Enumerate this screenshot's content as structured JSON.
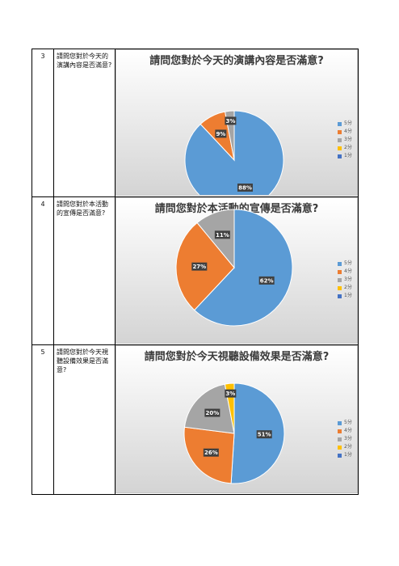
{
  "colors": {
    "5分": "#5b9bd5",
    "4分": "#ed7d31",
    "3分": "#a5a5a5",
    "2分": "#ffc000",
    "1分": "#4472c4"
  },
  "rows": [
    {
      "num": "3",
      "question": "請問您對於今天的演講內容是否滿意?",
      "chart_title": "請問您對於今天的演講內容是否滿意?"
    },
    {
      "num": "4",
      "question": "請問您對於本活動的宣傳是否滿意?",
      "chart_title": "請問您對於本活動的宣傳是否滿意?"
    },
    {
      "num": "5",
      "question": "請問您對於今天視聽設備效果是否滿意?",
      "chart_title": "請問您對於今天視聽設備效果是否滿意?"
    }
  ],
  "chart_data": [
    {
      "type": "pie",
      "title": "請問您對於今天的演講內容是否滿意?",
      "categories": [
        "5分",
        "4分",
        "3分",
        "2分",
        "1分"
      ],
      "values": [
        88,
        9,
        3,
        0,
        0
      ],
      "labels": [
        "88%",
        "9%",
        "3%"
      ],
      "legend": "right"
    },
    {
      "type": "pie",
      "title": "請問您對於本活動的宣傳是否滿意?",
      "categories": [
        "5分",
        "4分",
        "3分",
        "2分",
        "1分"
      ],
      "values": [
        62,
        27,
        11,
        0,
        0
      ],
      "labels": [
        "62%",
        "27%",
        "11%"
      ],
      "legend": "right"
    },
    {
      "type": "pie",
      "title": "請問您對於今天視聽設備效果是否滿意?",
      "categories": [
        "5分",
        "4分",
        "3分",
        "2分",
        "1分"
      ],
      "values": [
        51,
        26,
        20,
        3,
        0
      ],
      "labels": [
        "51%",
        "26%",
        "20%",
        "3%"
      ],
      "legend": "right"
    }
  ]
}
